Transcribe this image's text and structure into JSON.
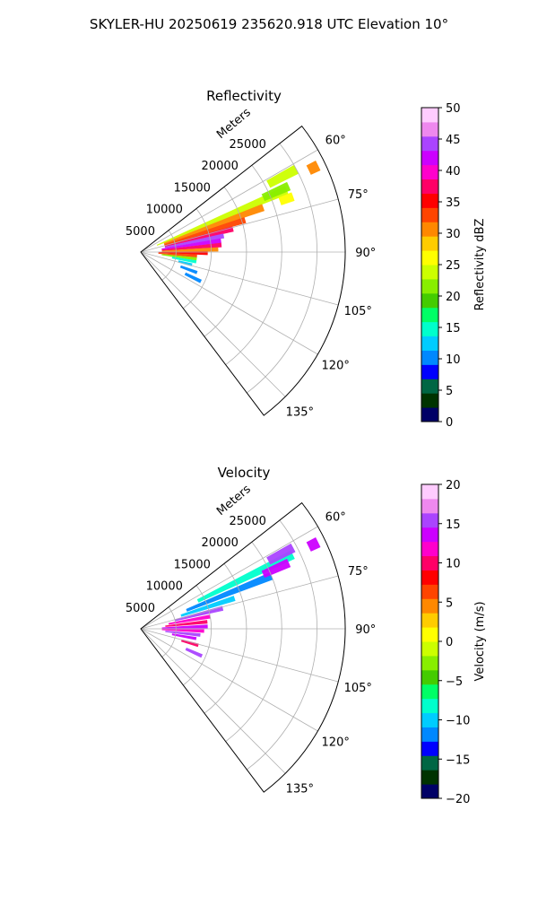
{
  "figure": {
    "suptitle": "SKYLER-HU  20250619  235620.918 UTC Elevation 10°"
  },
  "chart_data": [
    {
      "type": "heatmap",
      "panel": "reflectivity",
      "title": "Reflectivity",
      "radial_axis_label": "Meters",
      "radial_ticks": [
        "5000",
        "10000",
        "15000",
        "20000",
        "25000"
      ],
      "radial_tick_values": [
        5000,
        10000,
        15000,
        20000,
        25000
      ],
      "rmax": 29000,
      "azimuth_range_deg": [
        52,
        143
      ],
      "angle_ticks": [
        "60°",
        "75°",
        "90°",
        "105°",
        "120°",
        "135°"
      ],
      "angle_tick_values": [
        60,
        75,
        90,
        105,
        120,
        135
      ],
      "grid": true,
      "colorbar": {
        "label": "Reflectivity dBZ",
        "range": [
          0,
          50
        ],
        "ticks": [
          "0",
          "5",
          "10",
          "15",
          "20",
          "25",
          "30",
          "35",
          "40",
          "45",
          "50"
        ],
        "colors": [
          "#000066",
          "#003300",
          "#006644",
          "#0000ff",
          "#0088ff",
          "#00ccff",
          "#00ffcc",
          "#00ff66",
          "#44cc00",
          "#88ee00",
          "#ccff00",
          "#ffff00",
          "#ffcc00",
          "#ff8800",
          "#ff4400",
          "#ff0000",
          "#ff0066",
          "#ff00cc",
          "#cc00ff",
          "#aa44ff",
          "#ee88ee",
          "#ffccff"
        ]
      },
      "echoes": [
        {
          "az": 67,
          "r0": 2500,
          "r1": 22500,
          "value": 24
        },
        {
          "az": 70,
          "r0": 3500,
          "r1": 18500,
          "value": 30
        },
        {
          "az": 73,
          "r0": 3500,
          "r1": 15500,
          "value": 33
        },
        {
          "az": 76,
          "r0": 3500,
          "r1": 13500,
          "value": 38
        },
        {
          "az": 79,
          "r0": 3500,
          "r1": 12000,
          "value": 45
        },
        {
          "az": 82,
          "r0": 3000,
          "r1": 11500,
          "value": 42
        },
        {
          "az": 85,
          "r0": 3000,
          "r1": 11500,
          "value": 38
        },
        {
          "az": 88,
          "r0": 3000,
          "r1": 11000,
          "value": 30
        },
        {
          "az": 91,
          "r0": 2500,
          "r1": 9500,
          "value": 35
        },
        {
          "az": 94,
          "r0": 2500,
          "r1": 8000,
          "value": 33
        },
        {
          "az": 97,
          "r0": 3000,
          "r1": 8000,
          "value": 22
        },
        {
          "az": 100,
          "r0": 4500,
          "r1": 8000,
          "value": 14
        },
        {
          "az": 104,
          "r0": 5500,
          "r1": 7500,
          "value": 12
        },
        {
          "az": 110,
          "r0": 6000,
          "r1": 8500,
          "value": 10
        },
        {
          "az": 116,
          "r0": 7000,
          "r1": 9500,
          "value": 10
        },
        {
          "az": 62,
          "r0": 20500,
          "r1": 25000,
          "value": 24
        },
        {
          "az": 66,
          "r0": 19000,
          "r1": 23000,
          "value": 22
        },
        {
          "az": 64,
          "r0": 26500,
          "r1": 28000,
          "value": 30
        },
        {
          "az": 70,
          "r0": 21000,
          "r1": 23000,
          "value": 25
        }
      ]
    },
    {
      "type": "heatmap",
      "panel": "velocity",
      "title": "Velocity",
      "radial_axis_label": "Meters",
      "radial_ticks": [
        "5000",
        "10000",
        "15000",
        "20000",
        "25000"
      ],
      "radial_tick_values": [
        5000,
        10000,
        15000,
        20000,
        25000
      ],
      "rmax": 29000,
      "azimuth_range_deg": [
        52,
        143
      ],
      "angle_ticks": [
        "60°",
        "75°",
        "90°",
        "105°",
        "120°",
        "135°"
      ],
      "angle_tick_values": [
        60,
        75,
        90,
        105,
        120,
        135
      ],
      "grid": true,
      "colorbar": {
        "label": "Velocity (m/s)",
        "range": [
          -20,
          20
        ],
        "ticks": [
          "−20",
          "−15",
          "−10",
          "−5",
          "0",
          "5",
          "10",
          "15",
          "20"
        ],
        "colors": [
          "#000066",
          "#003300",
          "#006644",
          "#0000ff",
          "#0088ff",
          "#00ccff",
          "#00ffcc",
          "#00ff66",
          "#44cc00",
          "#88ee00",
          "#ccff00",
          "#ffff00",
          "#ffcc00",
          "#ff8800",
          "#ff4400",
          "#ff0000",
          "#ff0066",
          "#ff00cc",
          "#cc00ff",
          "#aa44ff",
          "#ee88ee",
          "#ffccff"
        ]
      },
      "echoes": [
        {
          "az": 64,
          "r0": 9000,
          "r1": 24000,
          "value": -9
        },
        {
          "az": 68,
          "r0": 7000,
          "r1": 20000,
          "value": -11
        },
        {
          "az": 72,
          "r0": 6000,
          "r1": 14000,
          "value": -10
        },
        {
          "az": 76,
          "r0": 5000,
          "r1": 12000,
          "value": 15
        },
        {
          "az": 80,
          "r0": 4000,
          "r1": 10000,
          "value": 12
        },
        {
          "az": 84,
          "r0": 3500,
          "r1": 9500,
          "value": 10
        },
        {
          "az": 88,
          "r0": 3000,
          "r1": 9500,
          "value": 14
        },
        {
          "az": 92,
          "r0": 3000,
          "r1": 9000,
          "value": 11
        },
        {
          "az": 96,
          "r0": 3500,
          "r1": 8500,
          "value": 16
        },
        {
          "az": 100,
          "r0": 4500,
          "r1": 8000,
          "value": 13
        },
        {
          "az": 106,
          "r0": 6000,
          "r1": 8500,
          "value": 10
        },
        {
          "az": 114,
          "r0": 7000,
          "r1": 9500,
          "value": 15
        },
        {
          "az": 62,
          "r0": 20500,
          "r1": 24500,
          "value": 15
        },
        {
          "az": 66,
          "r0": 19000,
          "r1": 23000,
          "value": 14
        },
        {
          "az": 64,
          "r0": 26500,
          "r1": 28000,
          "value": 14
        }
      ]
    }
  ]
}
